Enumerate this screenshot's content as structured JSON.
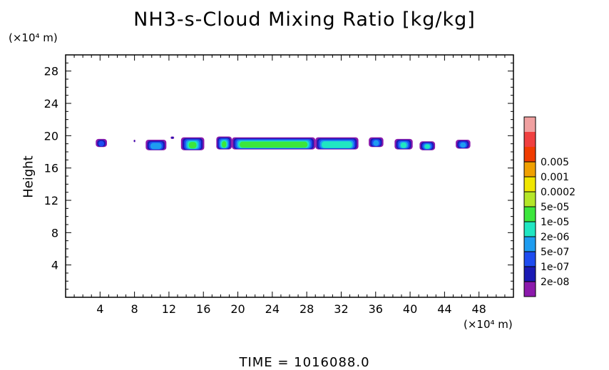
{
  "chart_data": {
    "type": "heatmap",
    "title": "NH3-s-Cloud Mixing Ratio [kg/kg]",
    "ylabel": "Height",
    "x_unit": "(×10⁴ m)",
    "y_unit": "(×10⁴ m)",
    "footer": "TIME  =  1016088.0",
    "xlim": [
      0,
      52
    ],
    "ylim": [
      0,
      30
    ],
    "x_ticks": [
      4,
      8,
      12,
      16,
      20,
      24,
      28,
      32,
      36,
      40,
      44,
      48
    ],
    "y_ticks": [
      4,
      8,
      12,
      16,
      20,
      24,
      28
    ],
    "legend": {
      "labels": [
        "2e-08",
        "1e-07",
        "5e-07",
        "2e-06",
        "1e-05",
        "5e-05",
        "0.0002",
        "0.001",
        "0.005"
      ],
      "colors": [
        "#8c1aac",
        "#1a1ab4",
        "#1e4cf0",
        "#1e9cf0",
        "#20e6c2",
        "#3ce63c",
        "#b4e628",
        "#f0e600",
        "#f0a000",
        "#f03c00",
        "#f04040",
        "#f0a0a0"
      ]
    },
    "clouds": [
      {
        "x1": 3.5,
        "x2": 4.8,
        "y1": 18.6,
        "y2": 19.6,
        "level": 2
      },
      {
        "x1": 7.9,
        "x2": 8.1,
        "y1": 19.2,
        "y2": 19.5,
        "level": 1
      },
      {
        "x1": 9.3,
        "x2": 11.7,
        "y1": 18.2,
        "y2": 19.5,
        "level": 3
      },
      {
        "x1": 12.2,
        "x2": 12.6,
        "y1": 19.6,
        "y2": 19.9,
        "level": 1
      },
      {
        "x1": 13.4,
        "x2": 16.1,
        "y1": 18.2,
        "y2": 19.8,
        "level": 5
      },
      {
        "x1": 17.5,
        "x2": 19.3,
        "y1": 18.3,
        "y2": 19.9,
        "level": 5
      },
      {
        "x1": 19.3,
        "x2": 29.0,
        "y1": 18.3,
        "y2": 19.8,
        "level": 5
      },
      {
        "x1": 29.0,
        "x2": 34.0,
        "y1": 18.3,
        "y2": 19.8,
        "level": 4
      },
      {
        "x1": 35.2,
        "x2": 36.9,
        "y1": 18.6,
        "y2": 19.8,
        "level": 3
      },
      {
        "x1": 38.2,
        "x2": 40.3,
        "y1": 18.3,
        "y2": 19.6,
        "level": 4
      },
      {
        "x1": 41.1,
        "x2": 42.9,
        "y1": 18.2,
        "y2": 19.3,
        "level": 4
      },
      {
        "x1": 45.3,
        "x2": 47.0,
        "y1": 18.4,
        "y2": 19.5,
        "level": 3
      }
    ]
  }
}
